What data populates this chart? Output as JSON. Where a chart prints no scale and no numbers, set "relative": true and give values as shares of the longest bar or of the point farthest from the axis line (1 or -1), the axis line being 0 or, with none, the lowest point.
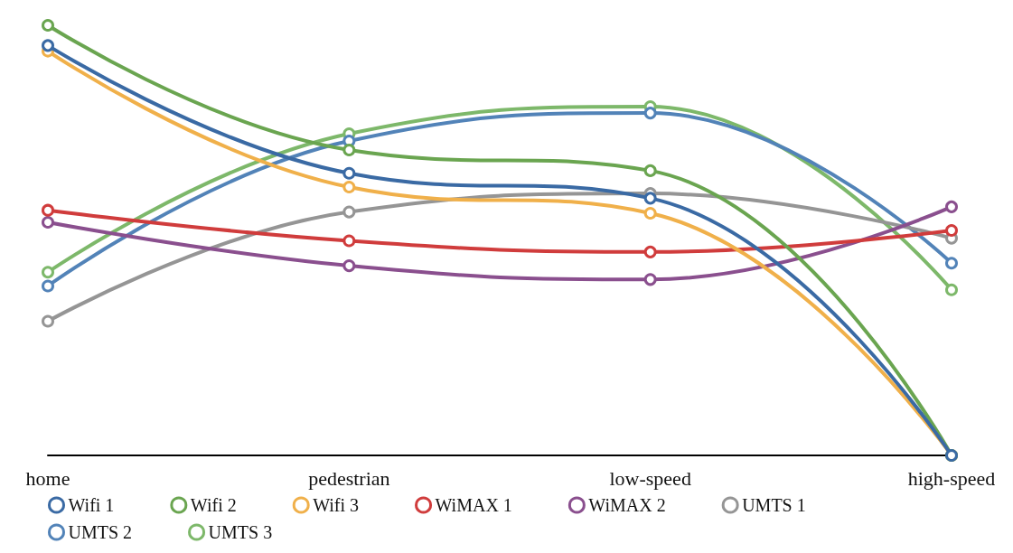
{
  "chart_data": {
    "type": "line",
    "relative": true,
    "categories": [
      "home",
      "pedestrian",
      "low-speed",
      "high-speed"
    ],
    "marker": "circle",
    "line_style": "solid",
    "legend": "bottom",
    "grid": false,
    "series": [
      {
        "name": "Wifi 1",
        "color": "#3a6aa4",
        "values": [
          0.953,
          0.656,
          0.598,
          0
        ]
      },
      {
        "name": "Wifi 2",
        "color": "#6aa550",
        "values": [
          1,
          0.71,
          0.662,
          0
        ]
      },
      {
        "name": "Wifi 3",
        "color": "#f0b04a",
        "values": [
          0.94,
          0.624,
          0.563,
          0
        ]
      },
      {
        "name": "WiMAX 1",
        "color": "#d03c3c",
        "values": [
          0.57,
          0.499,
          0.473,
          0.523
        ]
      },
      {
        "name": "WiMAX 2",
        "color": "#8a4f8e",
        "values": [
          0.542,
          0.441,
          0.409,
          0.578
        ]
      },
      {
        "name": "UMTS 1",
        "color": "#959595",
        "values": [
          0.312,
          0.566,
          0.609,
          0.505
        ]
      },
      {
        "name": "UMTS 2",
        "color": "#5283b8",
        "values": [
          0.394,
          0.731,
          0.796,
          0.447
        ]
      },
      {
        "name": "UMTS 3",
        "color": "#7db86a",
        "values": [
          0.426,
          0.748,
          0.811,
          0.385
        ]
      }
    ]
  }
}
